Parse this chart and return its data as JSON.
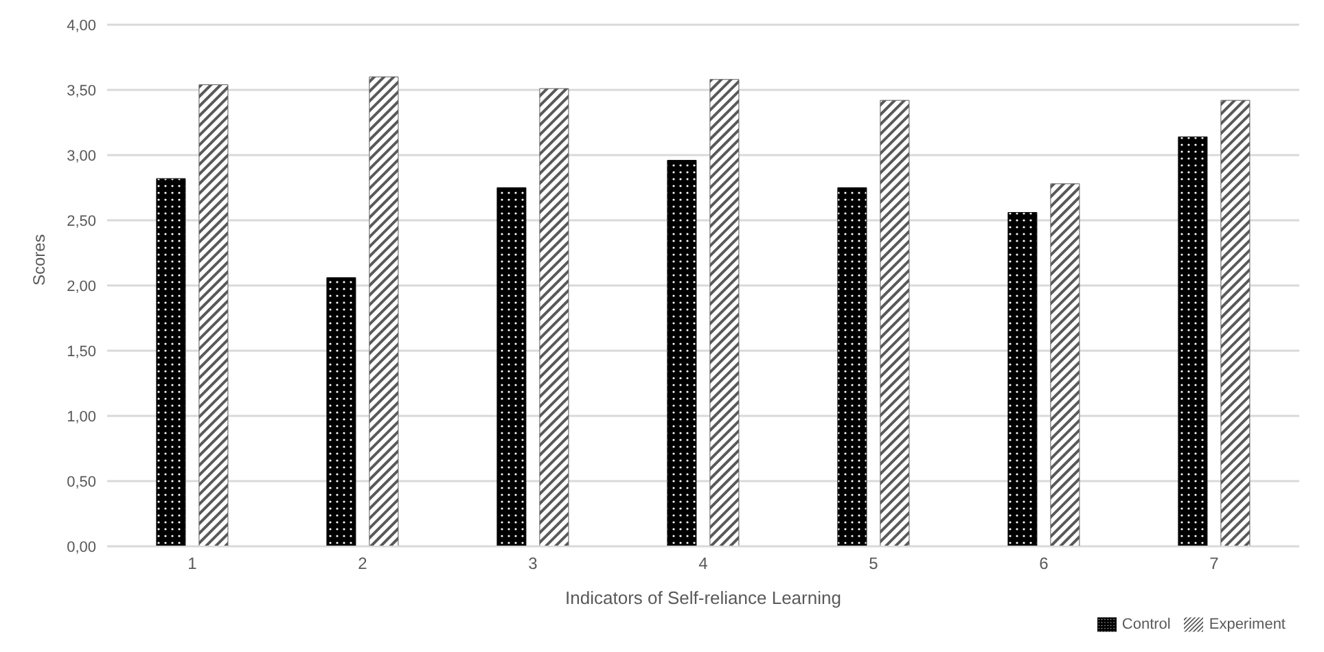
{
  "chart_data": {
    "type": "bar",
    "xlabel": "Indicators of  Self-reliance Learning",
    "ylabel": "Scores",
    "categories": [
      "1",
      "2",
      "3",
      "4",
      "5",
      "6",
      "7"
    ],
    "series": [
      {
        "name": "Control",
        "color": "#000000",
        "values": [
          2.82,
          2.06,
          2.75,
          2.96,
          2.75,
          2.56,
          3.14
        ]
      },
      {
        "name": "Experiment",
        "color": "#595959",
        "values": [
          3.54,
          3.6,
          3.51,
          3.58,
          3.42,
          2.78,
          3.42
        ]
      }
    ],
    "ylim": [
      0,
      4
    ],
    "yticks": [
      {
        "value": 0,
        "label": "0,00"
      },
      {
        "value": 0.5,
        "label": "0,50"
      },
      {
        "value": 1,
        "label": "1,00"
      },
      {
        "value": 1.5,
        "label": "1,50"
      },
      {
        "value": 2,
        "label": "2,00"
      },
      {
        "value": 2.5,
        "label": "2,50"
      },
      {
        "value": 3,
        "label": "3,00"
      },
      {
        "value": 3.5,
        "label": "3,50"
      },
      {
        "value": 4,
        "label": "4,00"
      }
    ],
    "grid": "y",
    "legend": "bottom right"
  }
}
